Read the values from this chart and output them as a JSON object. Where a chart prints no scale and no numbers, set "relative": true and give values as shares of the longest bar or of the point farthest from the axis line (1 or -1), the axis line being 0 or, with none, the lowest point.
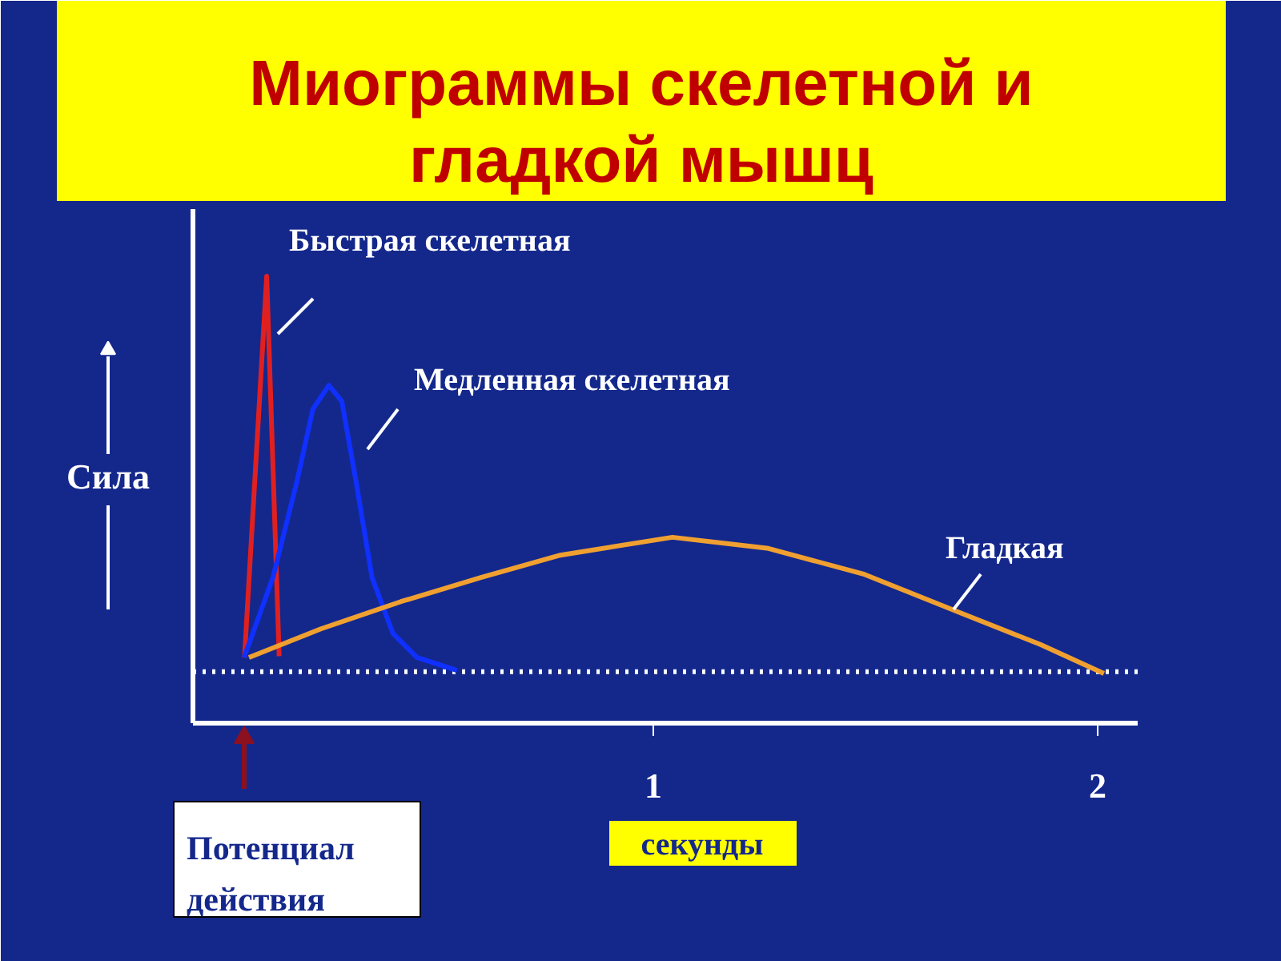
{
  "chart_data": {
    "type": "line",
    "title": "Миограммы скелетной и гладкой мышц",
    "xlabel": "секунды",
    "ylabel": "Сила",
    "relative": true,
    "xlim": [
      -0.036,
      2.09
    ],
    "xticks": [
      1,
      2
    ],
    "grid": false,
    "marker": "none",
    "line_style": "solid",
    "series": [
      {
        "name": "Быстрая скелетная",
        "color": "#e02020",
        "x": [
          0.08,
          0.13,
          0.158
        ],
        "values": [
          0.147,
          1.0,
          0.15
        ]
      },
      {
        "name": "Медленная скелетная",
        "color": "#1030ff",
        "x": [
          0.079,
          0.144,
          0.198,
          0.234,
          0.27,
          0.299,
          0.331,
          0.367,
          0.414,
          0.468,
          0.558
        ],
        "values": [
          0.147,
          0.326,
          0.541,
          0.703,
          0.756,
          0.72,
          0.541,
          0.326,
          0.201,
          0.147,
          0.118
        ]
      },
      {
        "name": "Гладкая",
        "color": "#f0a030",
        "x": [
          0.09,
          0.252,
          0.432,
          0.612,
          0.791,
          1.043,
          1.259,
          1.475,
          1.691,
          1.871,
          2.014
        ],
        "values": [
          0.147,
          0.211,
          0.272,
          0.326,
          0.376,
          0.416,
          0.391,
          0.333,
          0.247,
          0.176,
          0.111
        ]
      }
    ],
    "ref_lines": [
      {
        "axis": "y",
        "value": 0.115,
        "color": "#ffffff",
        "line_style": "dotted"
      }
    ],
    "annotations": [
      "Потенциал действия"
    ],
    "legend": false
  }
}
